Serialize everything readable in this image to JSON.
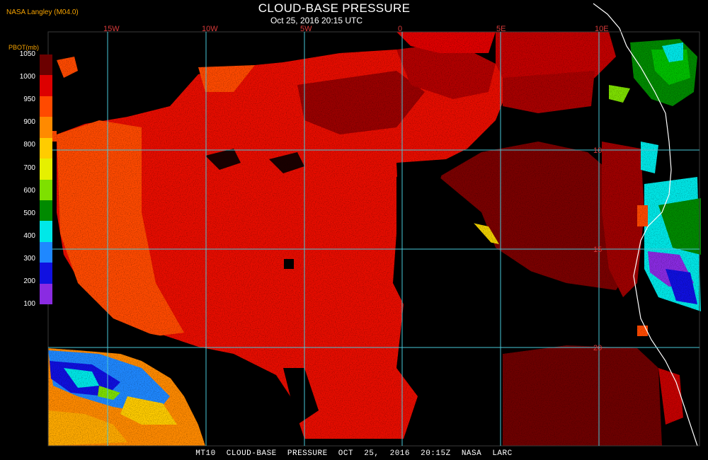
{
  "header": {
    "provider": "NASA Langley (M04.0)",
    "title": "CLOUD-BASE PRESSURE",
    "timestamp": "Oct 25, 2016 20:15 UTC"
  },
  "legend": {
    "unit_label": "PBOT(mb)",
    "levels": [
      {
        "value": "1050",
        "color": "#6b0000"
      },
      {
        "value": "1000",
        "color": "#dd0000"
      },
      {
        "value": "950",
        "color": "#ff4a00"
      },
      {
        "value": "900",
        "color": "#ff8a00"
      },
      {
        "value": "800",
        "color": "#ffcc00"
      },
      {
        "value": "700",
        "color": "#e6f000"
      },
      {
        "value": "600",
        "color": "#7ee000"
      },
      {
        "value": "500",
        "color": "#008a00"
      },
      {
        "value": "400",
        "color": "#00e8e8"
      },
      {
        "value": "300",
        "color": "#1f88ff"
      },
      {
        "value": "200",
        "color": "#1010e0"
      },
      {
        "value": "100",
        "color": "#8a2be2"
      }
    ]
  },
  "map": {
    "lon_labels": [
      "15W",
      "10W",
      "5W",
      "0",
      "5E",
      "10E"
    ],
    "lat_labels": [
      "10",
      "15",
      "20"
    ],
    "grid_color": "#49c8d8",
    "label_color": "#d83a3a",
    "coast_color": "#ffffff"
  },
  "footer": {
    "text": "MT10  CLOUD-BASE PRESSURE  OCT 25, 2016 20:15Z  NASA LARC"
  }
}
